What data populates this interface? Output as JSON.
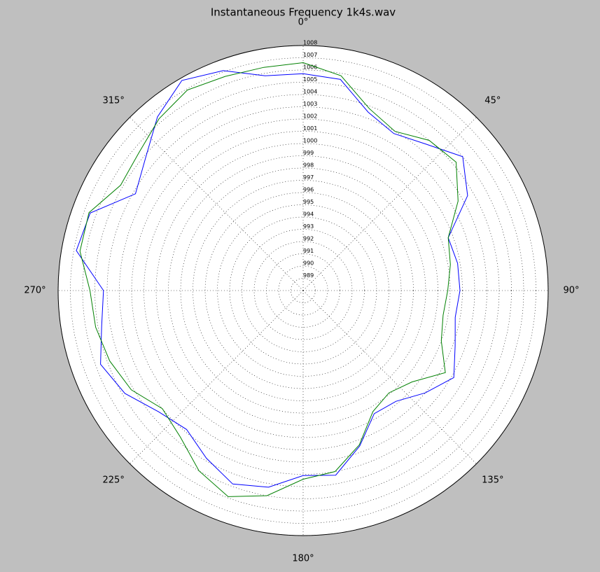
{
  "chart_data": {
    "type": "polar",
    "title": "Instantaneous Frequency  1k4s.wav",
    "theta": [
      0,
      10,
      20,
      30,
      40,
      50,
      60,
      70,
      80,
      90,
      100,
      110,
      120,
      130,
      140,
      150,
      160,
      170,
      180,
      190,
      200,
      210,
      220,
      230,
      240,
      250,
      260,
      270,
      280,
      290,
      300,
      310,
      320,
      330,
      340,
      350
    ],
    "series": [
      {
        "color": "#0000ff",
        "values": [
          1005.7,
          1005.5,
          1003.5,
          1002.8,
          1003.6,
          1005.0,
          1003.5,
          1000.6,
          1000.8,
          1000.8,
          1000.6,
          1001.2,
          1002.2,
          1001.0,
          999.8,
          999.6,
          1001.5,
          1003.3,
          1003.1,
          1004.3,
          1004.8,
          1003.8,
          1002.8,
          1003.4,
          1004.8,
          1005.6,
          1004.7,
          1004.3,
          1006.8,
          1006.5,
          1003.8,
          1004.8,
          1006.5,
          1007.8,
          1007.1,
          1005.8
        ]
      },
      {
        "color": "#008000",
        "values": [
          1006.6,
          1005.8,
          1003.8,
          1003.0,
          1004.0,
          1004.3,
          1002.6,
          1000.6,
          1000.2,
          999.8,
          999.6,
          1000.0,
          1001.4,
          999.6,
          998.9,
          999.4,
          1001.4,
          1003.0,
          1003.4,
          1005.0,
          1005.9,
          1005.0,
          1003.6,
          1003.0,
          1004.2,
          1004.8,
          1005.2,
          1005.4,
          1006.5,
          1006.6,
          1005.2,
          1005.5,
          1006.3,
          1006.9,
          1006.6,
          1006.5
        ]
      }
    ],
    "rlim": [
      988,
      1008
    ],
    "rticks": [
      989,
      990,
      991,
      992,
      993,
      994,
      995,
      996,
      997,
      998,
      999,
      1000,
      1001,
      1002,
      1003,
      1004,
      1005,
      1006,
      1007,
      1008
    ],
    "thetaticks": [
      {
        "value": 0,
        "label": "0°"
      },
      {
        "value": 45,
        "label": "45°"
      },
      {
        "value": 90,
        "label": "90°"
      },
      {
        "value": 135,
        "label": "135°"
      },
      {
        "value": 180,
        "label": "180°"
      },
      {
        "value": 225,
        "label": "225°"
      },
      {
        "value": 270,
        "label": "270°"
      },
      {
        "value": 315,
        "label": "315°"
      }
    ],
    "grid": true
  }
}
